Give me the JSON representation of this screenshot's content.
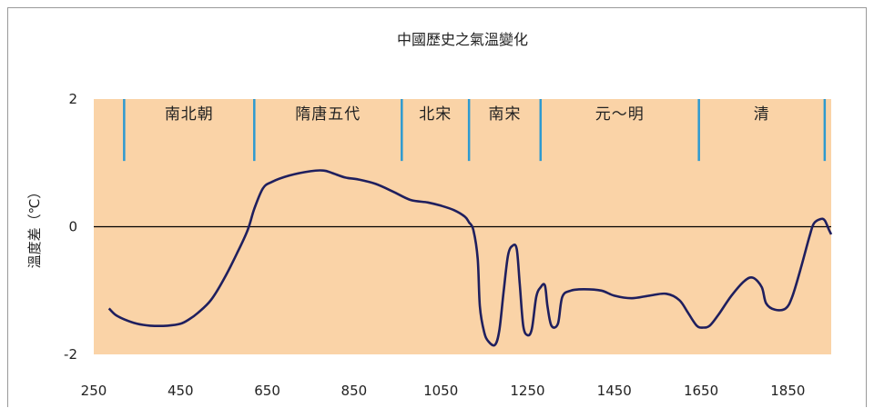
{
  "chart_data": {
    "type": "line",
    "title": "中國歷史之氣溫變化",
    "xlabel": "",
    "ylabel": "溫度差（℃）",
    "xlim": [
      250,
      1950
    ],
    "ylim": [
      -2,
      2
    ],
    "xticks": [
      "250",
      "450",
      "650",
      "850",
      "1050",
      "1250",
      "1450",
      "1650",
      "1850"
    ],
    "yticks": [
      "2",
      "0",
      "-2"
    ],
    "grid": false,
    "colors": {
      "plot_background": "#fad3a7",
      "line": "#1f1f5e",
      "period_divider": "#2e9ad0",
      "zero_line": "#000000"
    },
    "periods": [
      {
        "label": "南北朝",
        "start": 320,
        "end": 620
      },
      {
        "label": "隋唐五代",
        "start": 620,
        "end": 960
      },
      {
        "label": "北宋",
        "start": 960,
        "end": 1115
      },
      {
        "label": "南宋",
        "start": 1115,
        "end": 1280
      },
      {
        "label": "元～明",
        "start": 1280,
        "end": 1645
      },
      {
        "label": "清",
        "start": 1645,
        "end": 1935
      }
    ],
    "series": [
      {
        "values": [
          [
            285,
            -1.28
          ],
          [
            300,
            -1.38
          ],
          [
            320,
            -1.45
          ],
          [
            350,
            -1.52
          ],
          [
            380,
            -1.55
          ],
          [
            420,
            -1.55
          ],
          [
            450,
            -1.52
          ],
          [
            470,
            -1.45
          ],
          [
            490,
            -1.35
          ],
          [
            520,
            -1.15
          ],
          [
            550,
            -0.82
          ],
          [
            580,
            -0.42
          ],
          [
            605,
            -0.05
          ],
          [
            620,
            0.28
          ],
          [
            640,
            0.6
          ],
          [
            660,
            0.7
          ],
          [
            700,
            0.8
          ],
          [
            750,
            0.87
          ],
          [
            780,
            0.88
          ],
          [
            800,
            0.84
          ],
          [
            830,
            0.77
          ],
          [
            860,
            0.74
          ],
          [
            900,
            0.67
          ],
          [
            940,
            0.55
          ],
          [
            980,
            0.42
          ],
          [
            1020,
            0.38
          ],
          [
            1050,
            0.33
          ],
          [
            1080,
            0.26
          ],
          [
            1105,
            0.16
          ],
          [
            1115,
            0.07
          ],
          [
            1125,
            -0.05
          ],
          [
            1135,
            -0.5
          ],
          [
            1140,
            -1.25
          ],
          [
            1150,
            -1.65
          ],
          [
            1160,
            -1.8
          ],
          [
            1175,
            -1.85
          ],
          [
            1185,
            -1.62
          ],
          [
            1195,
            -1.0
          ],
          [
            1205,
            -0.45
          ],
          [
            1215,
            -0.3
          ],
          [
            1225,
            -0.35
          ],
          [
            1232,
            -0.9
          ],
          [
            1240,
            -1.55
          ],
          [
            1250,
            -1.7
          ],
          [
            1260,
            -1.6
          ],
          [
            1270,
            -1.1
          ],
          [
            1280,
            -0.95
          ],
          [
            1290,
            -0.92
          ],
          [
            1296,
            -1.25
          ],
          [
            1305,
            -1.55
          ],
          [
            1320,
            -1.52
          ],
          [
            1330,
            -1.1
          ],
          [
            1350,
            -1.0
          ],
          [
            1380,
            -0.98
          ],
          [
            1420,
            -1.0
          ],
          [
            1450,
            -1.08
          ],
          [
            1490,
            -1.12
          ],
          [
            1530,
            -1.08
          ],
          [
            1570,
            -1.05
          ],
          [
            1600,
            -1.15
          ],
          [
            1620,
            -1.35
          ],
          [
            1640,
            -1.55
          ],
          [
            1655,
            -1.58
          ],
          [
            1670,
            -1.55
          ],
          [
            1690,
            -1.38
          ],
          [
            1720,
            -1.08
          ],
          [
            1750,
            -0.85
          ],
          [
            1770,
            -0.8
          ],
          [
            1790,
            -0.95
          ],
          [
            1800,
            -1.2
          ],
          [
            1820,
            -1.3
          ],
          [
            1845,
            -1.28
          ],
          [
            1860,
            -1.1
          ],
          [
            1880,
            -0.65
          ],
          [
            1900,
            -0.15
          ],
          [
            1910,
            0.05
          ],
          [
            1925,
            0.12
          ],
          [
            1935,
            0.1
          ],
          [
            1945,
            -0.05
          ],
          [
            1950,
            -0.12
          ]
        ]
      }
    ]
  }
}
